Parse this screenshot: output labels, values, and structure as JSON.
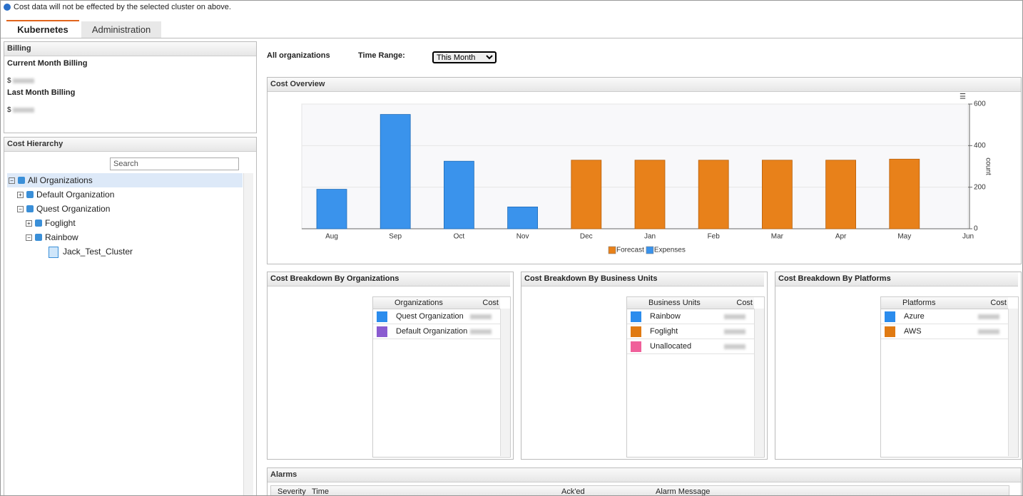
{
  "notice": "Cost data will not be effected by the selected cluster on above.",
  "tabs": [
    "Kubernetes",
    "Administration"
  ],
  "billing": {
    "title": "Billing",
    "current_label": "Current Month Billing",
    "last_label": "Last Month Billing",
    "currency": "$"
  },
  "hierarchy": {
    "title": "Cost Hierarchy",
    "search": "Search",
    "nodes": [
      {
        "label": "All Organizations",
        "expanded": true,
        "children": [
          {
            "label": "Default Organization",
            "expanded": false
          },
          {
            "label": "Quest Organization",
            "expanded": true,
            "children": [
              {
                "label": "Foglight",
                "expanded": false
              },
              {
                "label": "Rainbow",
                "expanded": true,
                "children": [
                  {
                    "label": "Jack_Test_Cluster"
                  }
                ]
              }
            ]
          }
        ]
      }
    ]
  },
  "filter": {
    "scope": "All organizations",
    "time_range_label": "Time Range:",
    "time_range": "This Month"
  },
  "chart_data": [
    {
      "type": "bar",
      "title": "Cost Overview",
      "y_label": "count",
      "categories": [
        "Aug",
        "Sep",
        "Oct",
        "Nov",
        "Dec",
        "Jan",
        "Feb",
        "Mar",
        "Apr",
        "May",
        "Jun"
      ],
      "series": [
        {
          "name": "Forecast",
          "color": "#e8811a",
          "values": [
            null,
            null,
            null,
            null,
            330,
            330,
            330,
            330,
            330,
            335,
            null
          ]
        },
        {
          "name": "Expenses",
          "color": "#3a93ec",
          "values": [
            190,
            550,
            325,
            105,
            null,
            null,
            null,
            null,
            null,
            null,
            null
          ]
        }
      ],
      "ylim": [
        0,
        600
      ],
      "yticks": [
        0,
        200,
        400,
        600
      ],
      "grid": true
    },
    {
      "type": "pie",
      "title": "Cost Breakdown By Organizations",
      "headers": [
        "Organizations",
        "Cost"
      ],
      "categories": [
        "Quest Organization",
        "Default Organization"
      ],
      "values": [
        100,
        0
      ],
      "colors": [
        "#2b8ced",
        "#8a5bd0"
      ]
    },
    {
      "type": "pie",
      "title": "Cost Breakdown By Business Units",
      "headers": [
        "Business Units",
        "Cost"
      ],
      "categories": [
        "Rainbow",
        "Foglight",
        "Unallocated"
      ],
      "values": [
        79,
        21,
        0
      ],
      "colors": [
        "#2b8ced",
        "#e07a12",
        "#f0609a"
      ]
    },
    {
      "type": "pie",
      "title": "Cost Breakdown By Platforms",
      "headers": [
        "Platforms",
        "Cost"
      ],
      "categories": [
        "Azure",
        "AWS"
      ],
      "values": [
        79,
        21
      ],
      "colors": [
        "#2b8ced",
        "#e07a12"
      ]
    }
  ],
  "alarms": {
    "title": "Alarms",
    "columns": [
      "Severity",
      "Time",
      "Ack'ed",
      "Alarm Message"
    ]
  }
}
